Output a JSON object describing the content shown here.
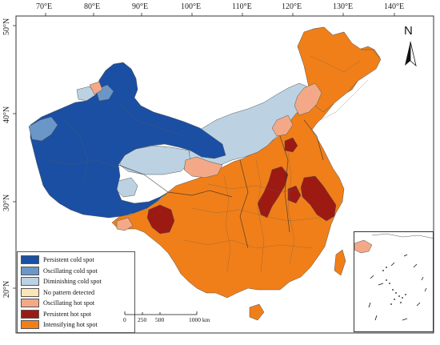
{
  "map": {
    "longitude_ticks": [
      "70°E",
      "80°E",
      "90°E",
      "100°E",
      "110°E",
      "120°E",
      "130°E",
      "140°E"
    ],
    "latitude_ticks": [
      "50°N",
      "40°N",
      "30°N",
      "20°N"
    ],
    "north_arrow_label": "N"
  },
  "legend": {
    "items": [
      {
        "label": "Persistent cold spot",
        "color": "#1a4fa3"
      },
      {
        "label": "Oscillating cold spot",
        "color": "#6b96c8"
      },
      {
        "label": "Diminishing cold spot",
        "color": "#bcd2e3"
      },
      {
        "label": "No pattern detected",
        "color": "#fbe7b5"
      },
      {
        "label": "Oscillating hot spot",
        "color": "#f3a987"
      },
      {
        "label": "Persistent hot spot",
        "color": "#9c1a12"
      },
      {
        "label": "Intensifying hot spot",
        "color": "#f07f19"
      }
    ]
  },
  "scale_bar": {
    "labels": [
      "0",
      "250",
      "500",
      "1000 km"
    ]
  },
  "colors": {
    "frame": "#333333",
    "ocean": "#ffffff",
    "boundary": "#555555"
  }
}
